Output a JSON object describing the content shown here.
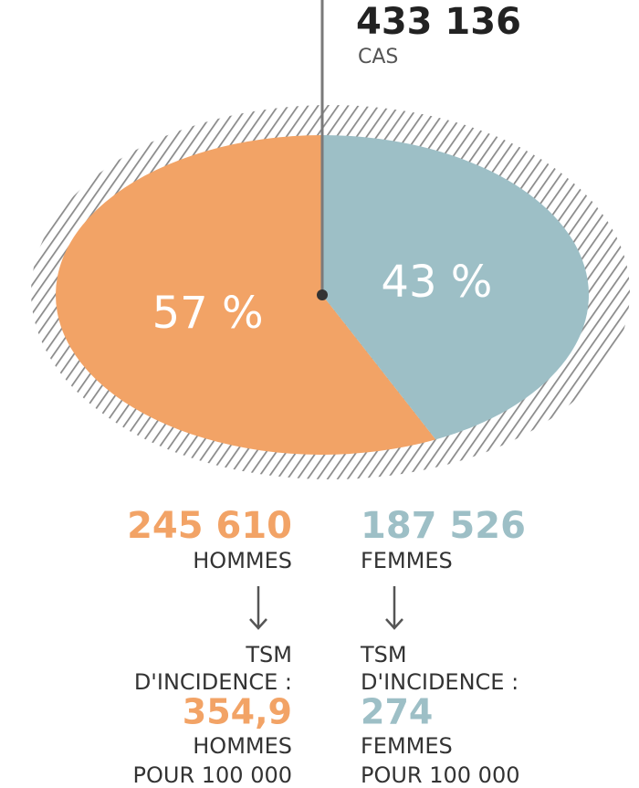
{
  "chart_data": {
    "type": "pie",
    "title": "433 136",
    "subtitle": "CAS",
    "categories": [
      "HOMMES",
      "FEMMES"
    ],
    "values": [
      57,
      43
    ],
    "value_labels": [
      "57 %",
      "43 %"
    ],
    "colors": [
      "#f2a366",
      "#9dbfc6"
    ],
    "details": [
      {
        "count": "245 610",
        "label": "HOMMES",
        "rate_title": [
          "TSM",
          "D'INCIDENCE :"
        ],
        "rate": "354,9",
        "rate_unit": [
          "HOMMES",
          "POUR 100 000"
        ]
      },
      {
        "count": "187 526",
        "label": "FEMMES",
        "rate_title": [
          "TSM",
          "D'INCIDENCE :"
        ],
        "rate": "274",
        "rate_unit": [
          "FEMMES",
          "POUR 100 000"
        ]
      }
    ]
  }
}
